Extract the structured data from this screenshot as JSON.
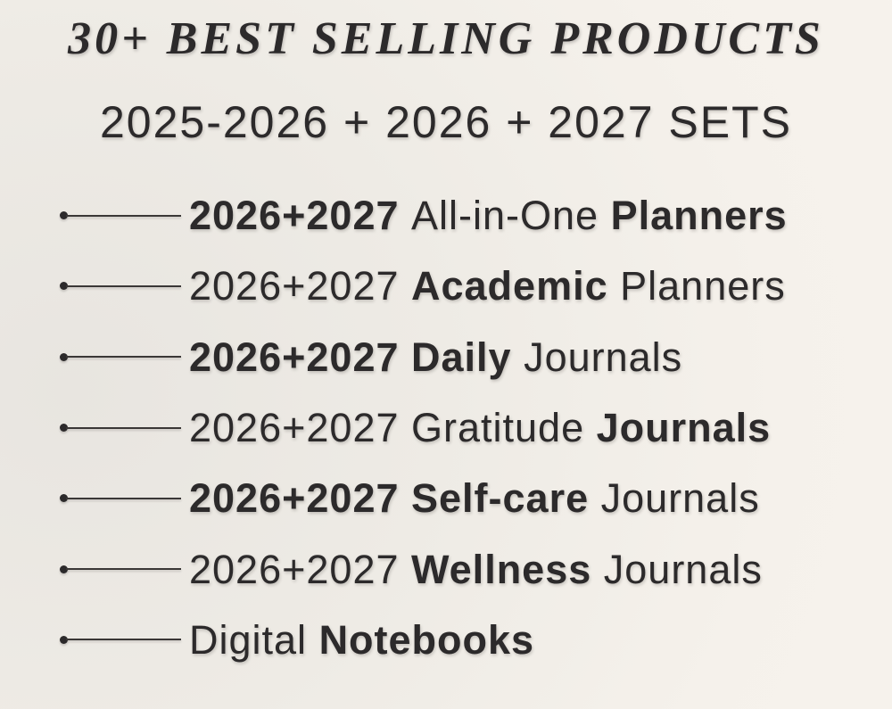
{
  "header": {
    "title": "30+ BEST SELLING PRODUCTS",
    "subtitle": "2025-2026 + 2026 + 2027 SETS"
  },
  "colors": {
    "text": "#2c2a2b",
    "background_light": "#f5f1eb",
    "background_shade": "#e8e5e0"
  },
  "products": [
    {
      "segments": [
        {
          "text": "2026+2027 ",
          "bold": true
        },
        {
          "text": "All-in-One ",
          "bold": false
        },
        {
          "text": "Planners",
          "bold": true
        }
      ]
    },
    {
      "segments": [
        {
          "text": "2026+2027 ",
          "bold": false
        },
        {
          "text": "Academic ",
          "bold": true
        },
        {
          "text": "Planners",
          "bold": false
        }
      ]
    },
    {
      "segments": [
        {
          "text": "2026+2027 Daily ",
          "bold": true
        },
        {
          "text": "Journals",
          "bold": false
        }
      ]
    },
    {
      "segments": [
        {
          "text": "2026+2027 Gratitude ",
          "bold": false
        },
        {
          "text": "Journals",
          "bold": true
        }
      ]
    },
    {
      "segments": [
        {
          "text": "2026+2027 Self-care ",
          "bold": true
        },
        {
          "text": "Journals",
          "bold": false
        }
      ]
    },
    {
      "segments": [
        {
          "text": "2026+2027 ",
          "bold": false
        },
        {
          "text": "Wellness ",
          "bold": true
        },
        {
          "text": "Journals",
          "bold": false
        }
      ]
    },
    {
      "segments": [
        {
          "text": "Digital ",
          "bold": false
        },
        {
          "text": "Notebooks",
          "bold": true
        }
      ]
    }
  ]
}
